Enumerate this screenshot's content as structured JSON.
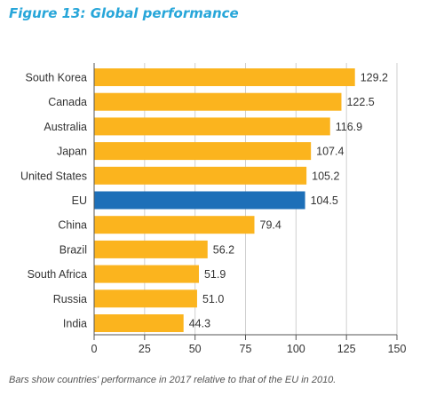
{
  "figure": {
    "title": "Figure 13: Global performance",
    "caption": "Bars show countries' performance in 2017 relative to that of the EU in 2010."
  },
  "chart_data": {
    "type": "bar",
    "orientation": "horizontal",
    "categories": [
      "South Korea",
      "Canada",
      "Australia",
      "Japan",
      "United States",
      "EU",
      "China",
      "Brazil",
      "South Africa",
      "Russia",
      "India"
    ],
    "values": [
      129.2,
      122.5,
      116.9,
      107.4,
      105.2,
      104.5,
      79.4,
      56.2,
      51.9,
      51.0,
      44.3
    ],
    "value_labels": [
      "129.2",
      "122.5",
      "116.9",
      "107.4",
      "105.2",
      "104.5",
      "79.4",
      "56.2",
      "51.9",
      "51.0",
      "44.3"
    ],
    "xlim": [
      0,
      150
    ],
    "xticks": [
      0,
      25,
      50,
      75,
      100,
      125,
      150
    ],
    "grid": true,
    "colors": {
      "default": "#fbb41e",
      "highlight": "#1d6fb8",
      "grid": "#cfcfcf",
      "axis": "#555555"
    },
    "highlight": "EU"
  }
}
